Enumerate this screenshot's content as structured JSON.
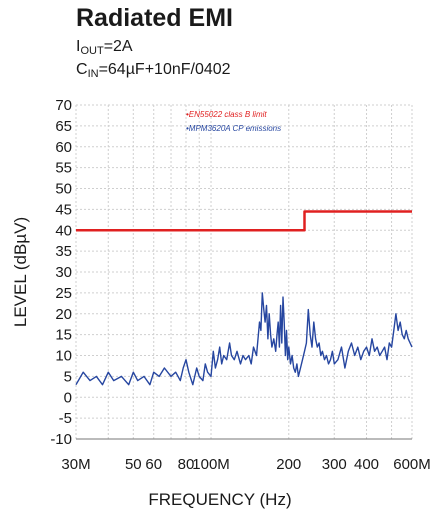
{
  "header": {
    "title": "Radiated EMI",
    "line1_prefix": "I",
    "line1_sub": "OUT",
    "line1_suffix": "=2A",
    "line2_prefix": "C",
    "line2_sub": "IN",
    "line2_suffix": "=64µF+10nF/0402"
  },
  "chart_data": {
    "type": "line",
    "xlabel": "FREQUENCY (Hz)",
    "ylabel": "LEVEL (dBµV)",
    "x_scale": "log",
    "xlim": [
      30,
      600
    ],
    "ylim": [
      -10,
      70
    ],
    "x_ticks": [
      {
        "value": 30,
        "label": "30M"
      },
      {
        "value": 50,
        "label": "50"
      },
      {
        "value": 60,
        "label": "60"
      },
      {
        "value": 80,
        "label": "80"
      },
      {
        "value": 100,
        "label": "100M"
      },
      {
        "value": 200,
        "label": "200"
      },
      {
        "value": 300,
        "label": "300"
      },
      {
        "value": 400,
        "label": "400"
      },
      {
        "value": 600,
        "label": "600M"
      }
    ],
    "y_ticks": [
      70,
      65,
      60,
      55,
      50,
      45,
      40,
      35,
      30,
      25,
      20,
      15,
      10,
      5,
      0,
      -5,
      -10
    ],
    "grid": true,
    "legend_position": "top-center",
    "series": [
      {
        "name": "EN55022 class B limit",
        "color": "#e02020",
        "points": [
          [
            30,
            40
          ],
          [
            230,
            40
          ],
          [
            230,
            44.5
          ],
          [
            600,
            44.5
          ]
        ]
      },
      {
        "name": "MPM3620A CP emissions",
        "color": "#2646a0",
        "points": [
          [
            30,
            3
          ],
          [
            32,
            6
          ],
          [
            34,
            4
          ],
          [
            36,
            5
          ],
          [
            38,
            3
          ],
          [
            40,
            6
          ],
          [
            42,
            4
          ],
          [
            45,
            5
          ],
          [
            48,
            3
          ],
          [
            50,
            6
          ],
          [
            52,
            4
          ],
          [
            55,
            5
          ],
          [
            58,
            3
          ],
          [
            60,
            6
          ],
          [
            63,
            5
          ],
          [
            66,
            7
          ],
          [
            70,
            5
          ],
          [
            73,
            6
          ],
          [
            76,
            4
          ],
          [
            78,
            7
          ],
          [
            80,
            9
          ],
          [
            82,
            6
          ],
          [
            85,
            3
          ],
          [
            88,
            7
          ],
          [
            90,
            5
          ],
          [
            93,
            4
          ],
          [
            95,
            8
          ],
          [
            97,
            6
          ],
          [
            100,
            5
          ],
          [
            102,
            11
          ],
          [
            104,
            7
          ],
          [
            106,
            9
          ],
          [
            108,
            12
          ],
          [
            110,
            8
          ],
          [
            112,
            10
          ],
          [
            115,
            9
          ],
          [
            118,
            13
          ],
          [
            120,
            10
          ],
          [
            123,
            9
          ],
          [
            126,
            11
          ],
          [
            130,
            8
          ],
          [
            133,
            10
          ],
          [
            136,
            9
          ],
          [
            140,
            10
          ],
          [
            143,
            8
          ],
          [
            146,
            12
          ],
          [
            150,
            10
          ],
          [
            152,
            14
          ],
          [
            154,
            18
          ],
          [
            156,
            16
          ],
          [
            158,
            25
          ],
          [
            160,
            21
          ],
          [
            162,
            18
          ],
          [
            164,
            22
          ],
          [
            166,
            14
          ],
          [
            168,
            20
          ],
          [
            170,
            15
          ],
          [
            172,
            12
          ],
          [
            175,
            14
          ],
          [
            178,
            11
          ],
          [
            180,
            15
          ],
          [
            182,
            18
          ],
          [
            184,
            12
          ],
          [
            186,
            22
          ],
          [
            188,
            13
          ],
          [
            190,
            24
          ],
          [
            192,
            18
          ],
          [
            194,
            10
          ],
          [
            196,
            16
          ],
          [
            198,
            9
          ],
          [
            200,
            12
          ],
          [
            203,
            8
          ],
          [
            206,
            10
          ],
          [
            209,
            7
          ],
          [
            212,
            6
          ],
          [
            215,
            8
          ],
          [
            218,
            5
          ],
          [
            222,
            7
          ],
          [
            226,
            9
          ],
          [
            230,
            11
          ],
          [
            234,
            13
          ],
          [
            238,
            21
          ],
          [
            242,
            15
          ],
          [
            246,
            12
          ],
          [
            250,
            18
          ],
          [
            254,
            14
          ],
          [
            258,
            12
          ],
          [
            262,
            13
          ],
          [
            266,
            10
          ],
          [
            270,
            11
          ],
          [
            275,
            9
          ],
          [
            280,
            10
          ],
          [
            285,
            8
          ],
          [
            290,
            9
          ],
          [
            295,
            11
          ],
          [
            300,
            8
          ],
          [
            310,
            9
          ],
          [
            320,
            12
          ],
          [
            330,
            7
          ],
          [
            340,
            11
          ],
          [
            350,
            13
          ],
          [
            360,
            10
          ],
          [
            370,
            12
          ],
          [
            380,
            9
          ],
          [
            390,
            11
          ],
          [
            400,
            12
          ],
          [
            410,
            10
          ],
          [
            420,
            14
          ],
          [
            430,
            11
          ],
          [
            440,
            12
          ],
          [
            450,
            10
          ],
          [
            460,
            11
          ],
          [
            470,
            12
          ],
          [
            480,
            9
          ],
          [
            490,
            13
          ],
          [
            500,
            12
          ],
          [
            510,
            16
          ],
          [
            520,
            20
          ],
          [
            530,
            16
          ],
          [
            540,
            18
          ],
          [
            550,
            15
          ],
          [
            560,
            14
          ],
          [
            570,
            16
          ],
          [
            580,
            14
          ],
          [
            590,
            13
          ],
          [
            600,
            12
          ]
        ]
      }
    ]
  }
}
